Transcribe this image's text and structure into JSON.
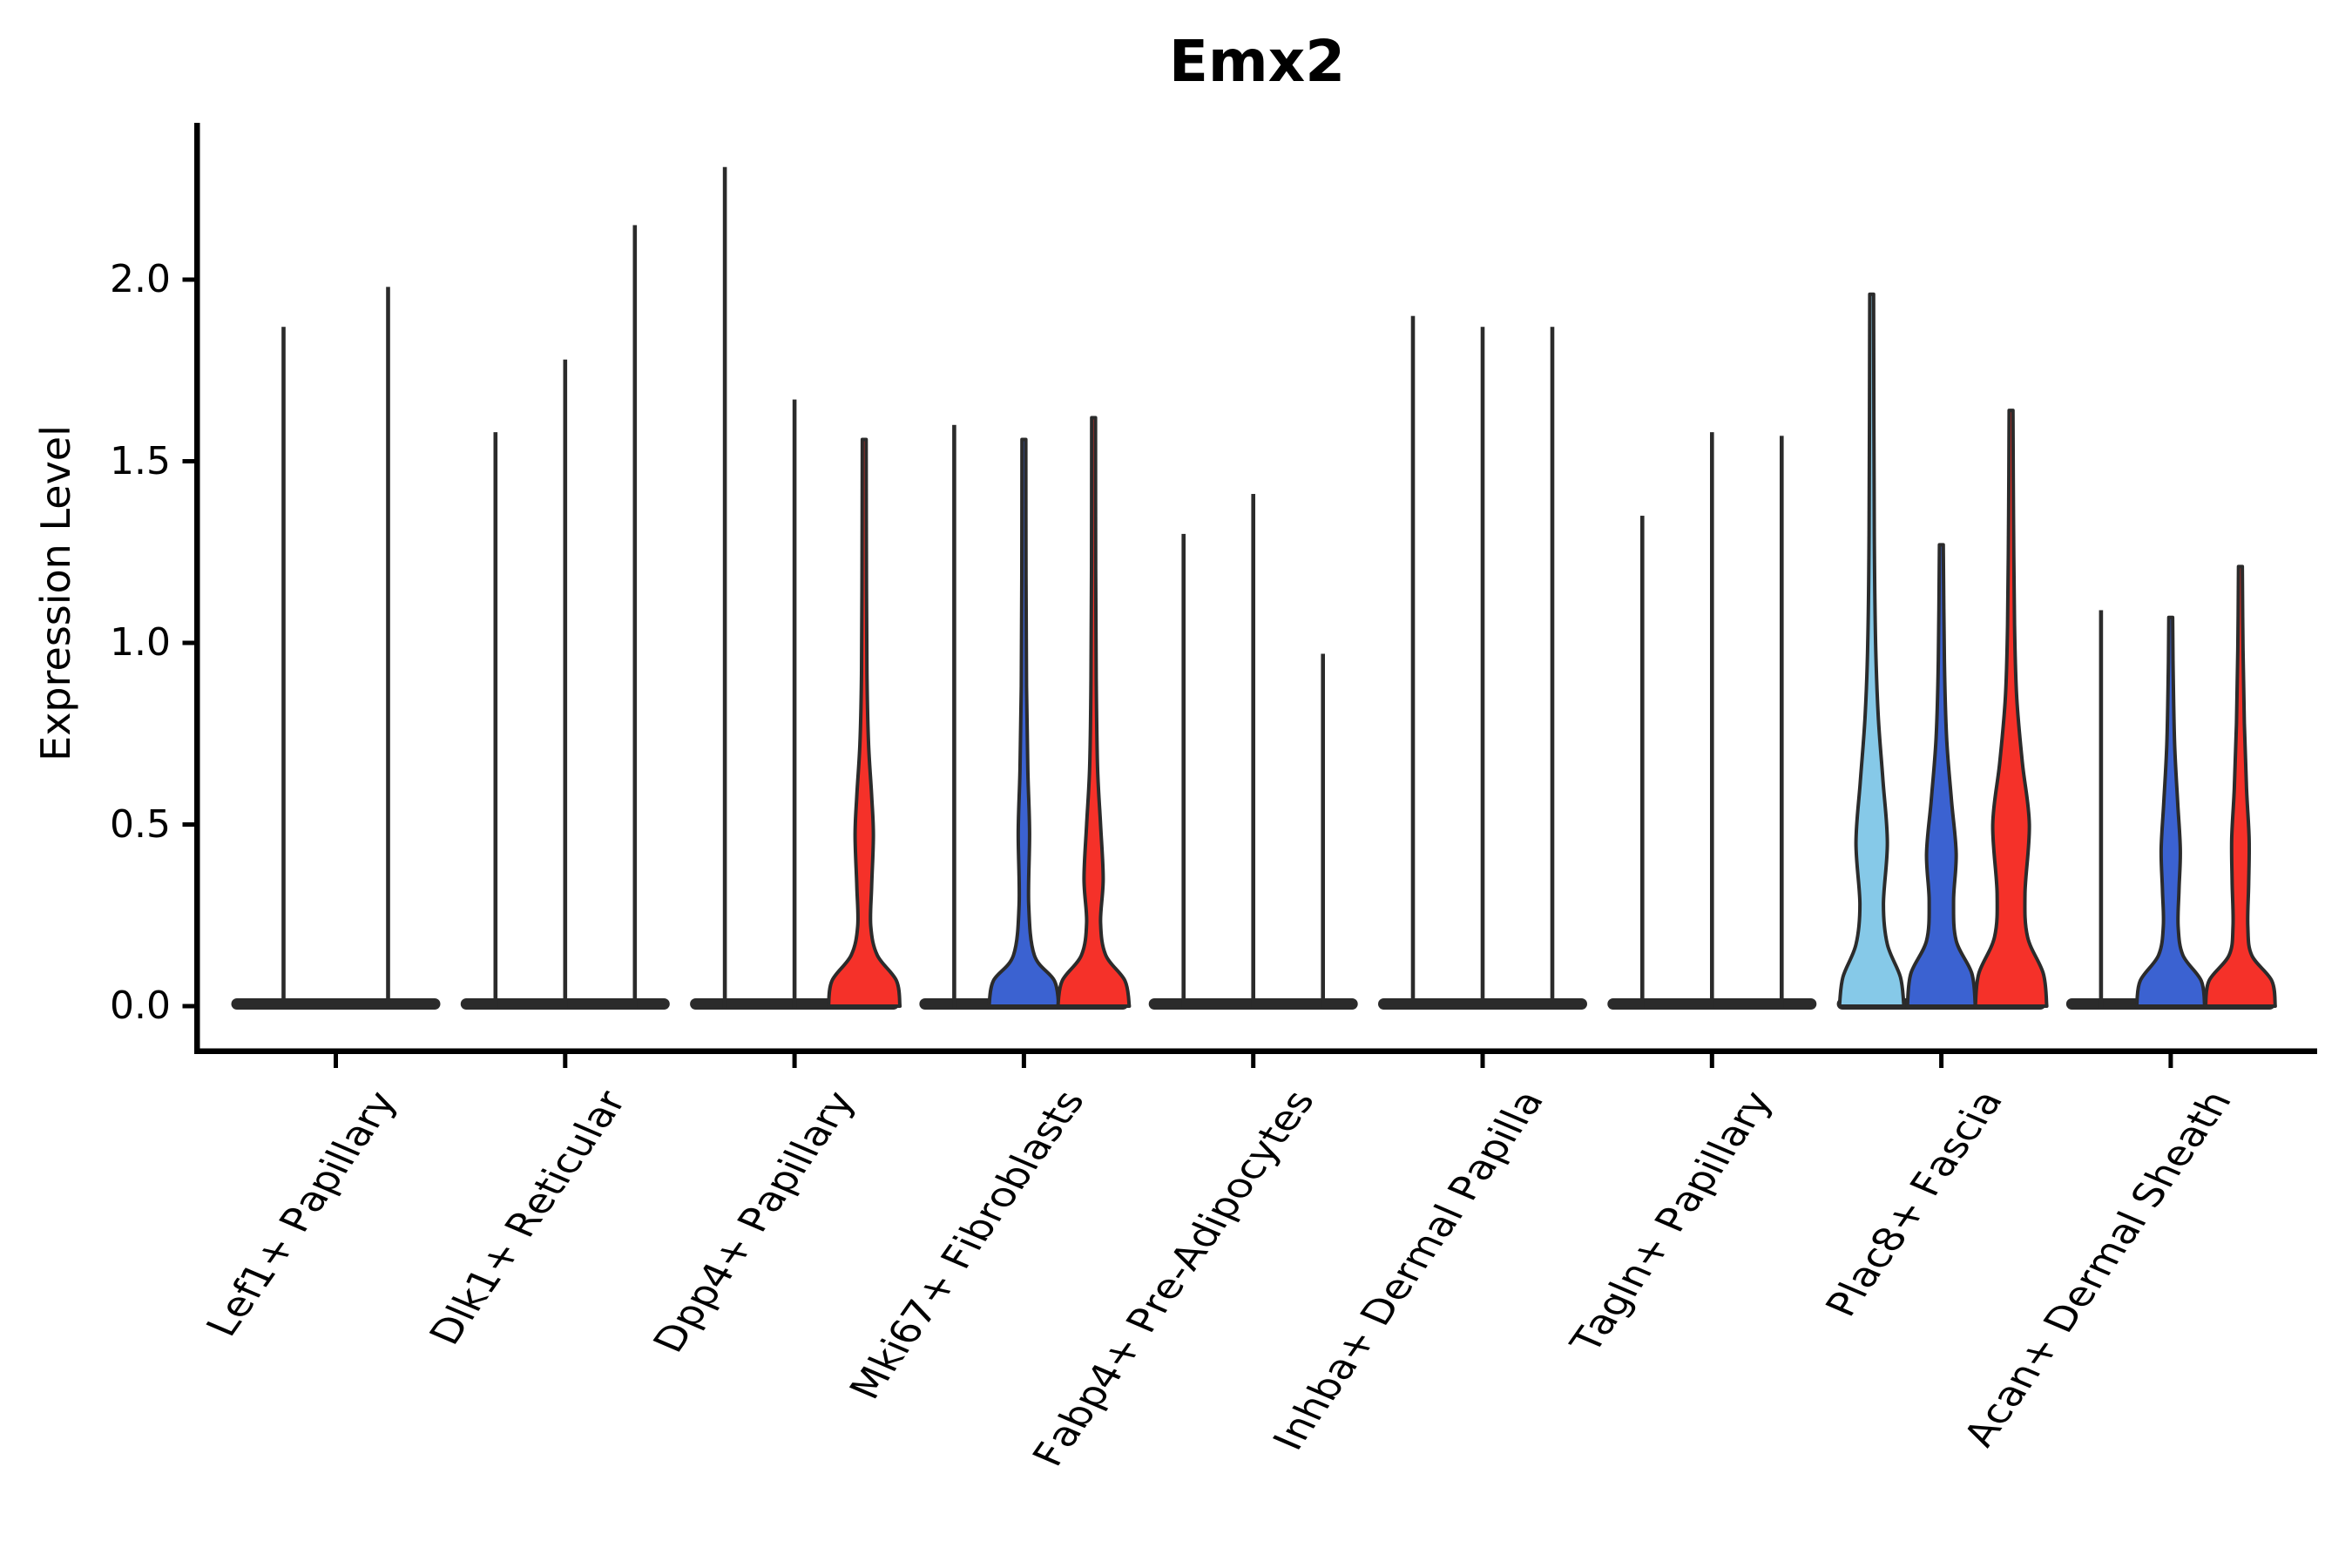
{
  "chart_data": {
    "type": "violin",
    "title": "Emx2",
    "ylabel": "Expression Level",
    "xlabel": "",
    "legend": "none",
    "grid": false,
    "ylim": [
      -0.12,
      2.43
    ],
    "ytick_values": [
      0.0,
      0.5,
      1.0,
      1.5,
      2.0
    ],
    "ytick_labels": [
      "0.0",
      "0.5",
      "1.0",
      "1.5",
      "2.0"
    ],
    "categories": [
      "Lef1+ Papillary",
      "Dlk1+ Reticular",
      "Dpp4+ Papillary",
      "Mki67+ Fibroblasts",
      "Fabp4+ Pre-Adipocytes",
      "Inhba+ Dermal Papilla",
      "Tagln+ Papillary",
      "Plac8+ Fascia",
      "Acan+ Dermal Sheath"
    ],
    "palette": {
      "light_blue": "#86C9E8",
      "blue": "#3B62D1",
      "red": "#F53129",
      "violin_outline": "#2b2b2b",
      "axis_color": "#000000"
    },
    "groups": [
      {
        "category": "Lef1+ Papillary",
        "violins": [
          {
            "style": "thin",
            "max": 1.87,
            "fill": null
          },
          {
            "style": "thin",
            "max": 1.98,
            "fill": null
          }
        ]
      },
      {
        "category": "Dlk1+ Reticular",
        "violins": [
          {
            "style": "thin",
            "max": 1.58,
            "fill": null
          },
          {
            "style": "thin",
            "max": 1.78,
            "fill": null
          },
          {
            "style": "thin",
            "max": 2.15,
            "fill": null
          }
        ]
      },
      {
        "category": "Dpp4+ Papillary",
        "violins": [
          {
            "style": "thin",
            "max": 2.31,
            "fill": null
          },
          {
            "style": "thin",
            "max": 1.67,
            "fill": null
          },
          {
            "style": "wide",
            "max": 1.56,
            "fill": "#F53129",
            "profile": [
              [
                0,
                41
              ],
              [
                0.07,
                37
              ],
              [
                0.14,
                15
              ],
              [
                0.22,
                7.5
              ],
              [
                0.33,
                8.5
              ],
              [
                0.47,
                10.5
              ],
              [
                0.58,
                8.5
              ],
              [
                0.72,
                5
              ],
              [
                0.9,
                3.2
              ],
              [
                1.15,
                2.6
              ],
              [
                1.56,
                2.2
              ]
            ]
          }
        ]
      },
      {
        "category": "Mki67+ Fibroblasts",
        "violins": [
          {
            "style": "thin",
            "max": 1.6,
            "fill": null
          },
          {
            "style": "wide",
            "max": 1.56,
            "fill": "#3B62D1",
            "profile": [
              [
                0,
                40
              ],
              [
                0.07,
                35
              ],
              [
                0.14,
                12
              ],
              [
                0.28,
                5.5
              ],
              [
                0.48,
                6.5
              ],
              [
                0.65,
                4.5
              ],
              [
                0.88,
                3
              ],
              [
                1.2,
                2.4
              ],
              [
                1.56,
                2.2
              ]
            ]
          },
          {
            "style": "wide",
            "max": 1.62,
            "fill": "#F53129",
            "profile": [
              [
                0,
                41
              ],
              [
                0.07,
                36
              ],
              [
                0.14,
                14
              ],
              [
                0.23,
                8
              ],
              [
                0.35,
                11
              ],
              [
                0.5,
                8
              ],
              [
                0.66,
                4.5
              ],
              [
                0.9,
                3
              ],
              [
                1.2,
                2.4
              ],
              [
                1.62,
                2.2
              ]
            ]
          }
        ]
      },
      {
        "category": "Fabp4+ Pre-Adipocytes",
        "violins": [
          {
            "style": "thin",
            "max": 1.3,
            "fill": null
          },
          {
            "style": "thin",
            "max": 1.41,
            "fill": null
          },
          {
            "style": "thin",
            "max": 0.97,
            "fill": null
          }
        ]
      },
      {
        "category": "Inhba+ Dermal Papilla",
        "violins": [
          {
            "style": "thin",
            "max": 1.9,
            "fill": null
          },
          {
            "style": "thin",
            "max": 1.87,
            "fill": null
          },
          {
            "style": "thin",
            "max": 1.87,
            "fill": null
          }
        ]
      },
      {
        "category": "Tagln+ Papillary",
        "violins": [
          {
            "style": "thin",
            "max": 1.35,
            "fill": null
          },
          {
            "style": "thin",
            "max": 1.58,
            "fill": null
          },
          {
            "style": "thin",
            "max": 1.57,
            "fill": null
          }
        ]
      },
      {
        "category": "Plac8+ Fascia",
        "violins": [
          {
            "style": "wide",
            "max": 1.96,
            "fill": "#86C9E8",
            "profile": [
              [
                0,
                37
              ],
              [
                0.08,
                33
              ],
              [
                0.17,
                18
              ],
              [
                0.28,
                13.5
              ],
              [
                0.45,
                18
              ],
              [
                0.62,
                13
              ],
              [
                0.8,
                7.5
              ],
              [
                1.0,
                4.5
              ],
              [
                1.3,
                3
              ],
              [
                1.96,
                2.2
              ]
            ]
          },
          {
            "style": "wide",
            "max": 1.27,
            "fill": "#3B62D1",
            "profile": [
              [
                0,
                39
              ],
              [
                0.09,
                35
              ],
              [
                0.18,
                17
              ],
              [
                0.29,
                14
              ],
              [
                0.42,
                17
              ],
              [
                0.57,
                11.5
              ],
              [
                0.74,
                6
              ],
              [
                0.95,
                3.5
              ],
              [
                1.27,
                2.2
              ]
            ]
          },
          {
            "style": "wide",
            "max": 1.64,
            "fill": "#F53129",
            "profile": [
              [
                0,
                41
              ],
              [
                0.09,
                37
              ],
              [
                0.19,
                19
              ],
              [
                0.31,
                16
              ],
              [
                0.5,
                21
              ],
              [
                0.67,
                13
              ],
              [
                0.85,
                6.5
              ],
              [
                1.05,
                4
              ],
              [
                1.35,
                2.8
              ],
              [
                1.64,
                2.2
              ]
            ]
          }
        ]
      },
      {
        "category": "Acan+ Dermal Sheath",
        "violins": [
          {
            "style": "thin",
            "max": 1.09,
            "fill": null
          },
          {
            "style": "wide",
            "max": 1.07,
            "fill": "#3B62D1",
            "profile": [
              [
                0,
                39
              ],
              [
                0.07,
                35
              ],
              [
                0.14,
                14
              ],
              [
                0.22,
                8.5
              ],
              [
                0.32,
                9.5
              ],
              [
                0.43,
                11
              ],
              [
                0.56,
                8
              ],
              [
                0.72,
                4.5
              ],
              [
                0.92,
                2.8
              ],
              [
                1.07,
                2.2
              ]
            ]
          },
          {
            "style": "wide",
            "max": 1.21,
            "fill": "#F53129",
            "profile": [
              [
                0,
                40
              ],
              [
                0.07,
                36
              ],
              [
                0.14,
                13
              ],
              [
                0.22,
                8.5
              ],
              [
                0.34,
                9.5
              ],
              [
                0.46,
                10
              ],
              [
                0.6,
                7
              ],
              [
                0.78,
                4.5
              ],
              [
                0.98,
                3
              ],
              [
                1.21,
                2.2
              ]
            ]
          }
        ]
      }
    ]
  }
}
